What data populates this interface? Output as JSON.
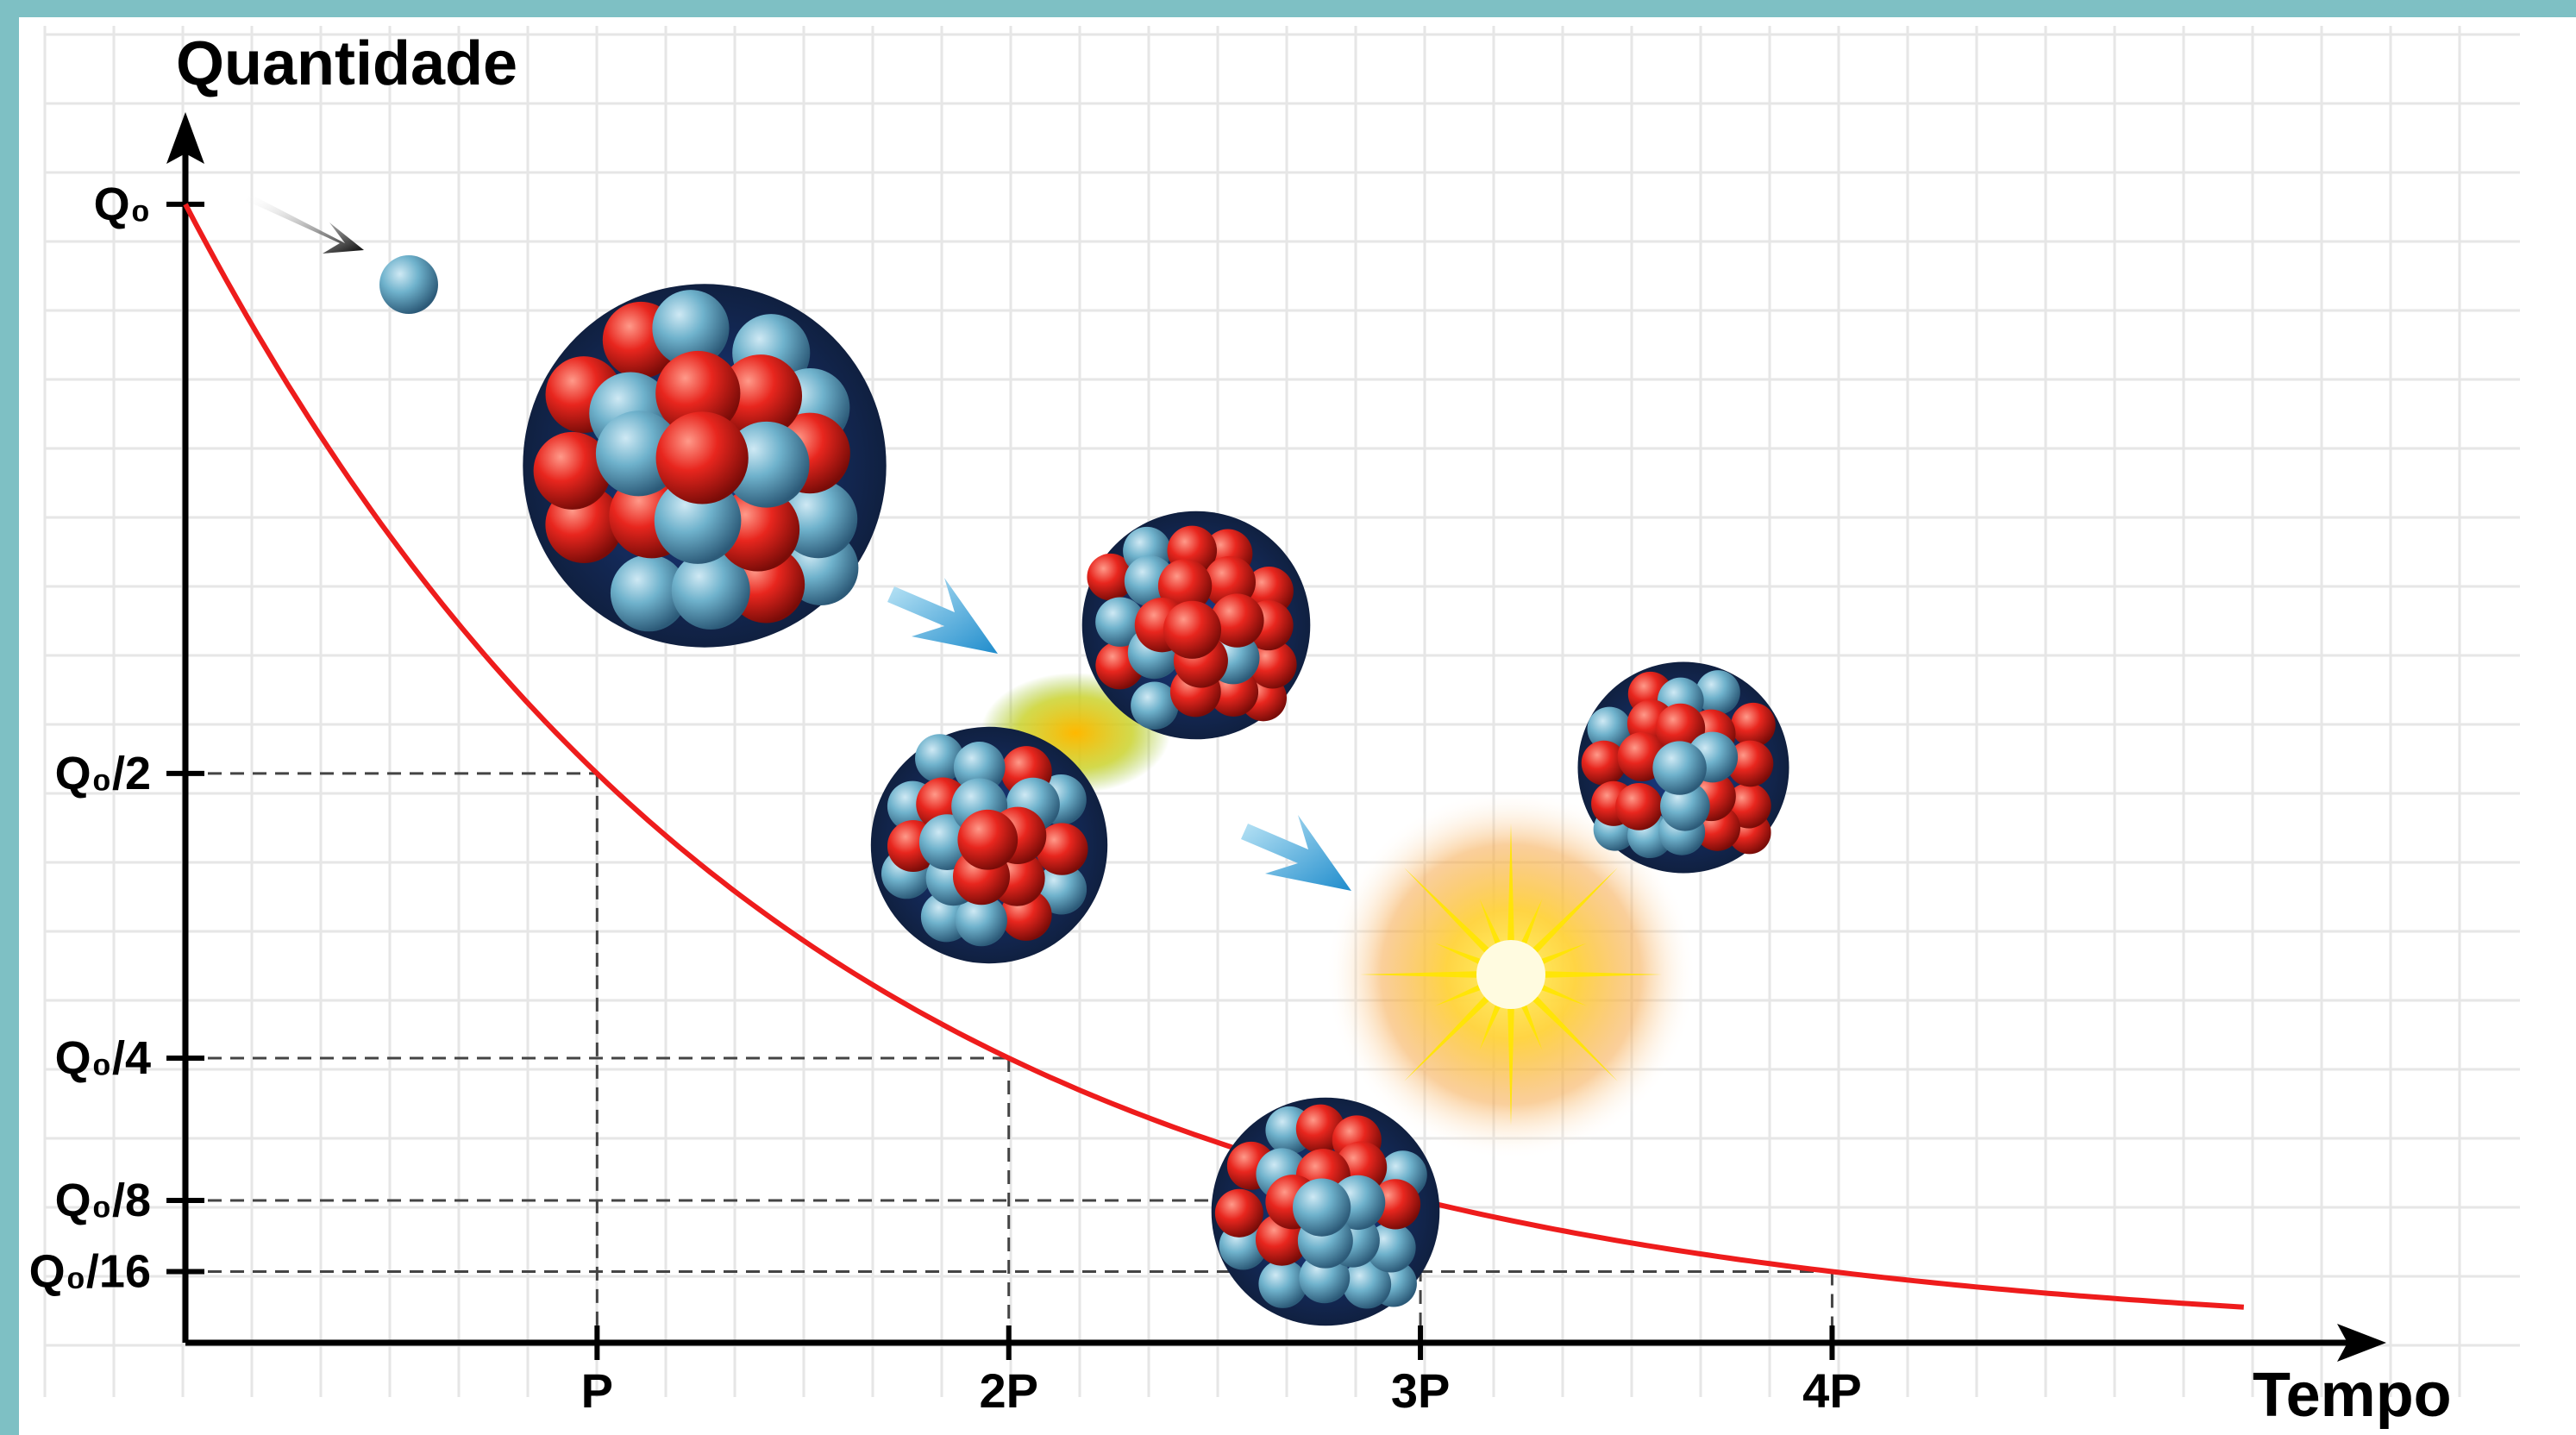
{
  "chart_data": {
    "type": "line",
    "title": "",
    "ylabel": "Quantidade",
    "xlabel": "Tempo",
    "x_ticks": [
      {
        "value": 1,
        "label": "P"
      },
      {
        "value": 2,
        "label": "2P"
      },
      {
        "value": 3,
        "label": "3P"
      },
      {
        "value": 4,
        "label": "4P"
      }
    ],
    "y_ticks": [
      {
        "value": 1,
        "label": "Q₀"
      },
      {
        "value": 0.5,
        "label": "Q₀/2"
      },
      {
        "value": 0.25,
        "label": "Q₀/4"
      },
      {
        "value": 0.125,
        "label": "Q₀/8"
      },
      {
        "value": 0.0625,
        "label": "Q₀/16"
      }
    ],
    "xlim": [
      0,
      5.3
    ],
    "ylim": [
      0,
      1.14
    ],
    "series": [
      {
        "color": "#ee1c1c",
        "x": [
          0,
          0.5,
          1,
          1.5,
          2,
          2.5,
          3,
          3.5,
          4,
          4.5,
          5
        ],
        "y": [
          1,
          0.7071,
          0.5,
          0.3536,
          0.25,
          0.1768,
          0.125,
          0.0884,
          0.0625,
          0.0442,
          0.0313
        ]
      }
    ],
    "reference_lines": [
      {
        "x": 1,
        "y": 0.5
      },
      {
        "x": 2,
        "y": 0.25
      },
      {
        "x": 3,
        "y": 0.125
      },
      {
        "x": 4,
        "y": 0.0625
      }
    ],
    "grid": true,
    "colors": {
      "frame": "#7ec0c4",
      "grid": "#e6e6e6",
      "curve": "#ee1c1c",
      "proton": "#e8261e",
      "neutron": "#6fb2cc",
      "neutron_dark": "#2c5a78",
      "arrow": "#2fa6da",
      "flash": "#ffe600"
    },
    "illustrations": [
      "incoming-neutron",
      "large-nucleus",
      "splitting-nucleus",
      "fission-fragment-top",
      "fission-fragment-bottom",
      "energy-flash",
      "small-nucleus-right",
      "small-nucleus-bottom"
    ]
  }
}
